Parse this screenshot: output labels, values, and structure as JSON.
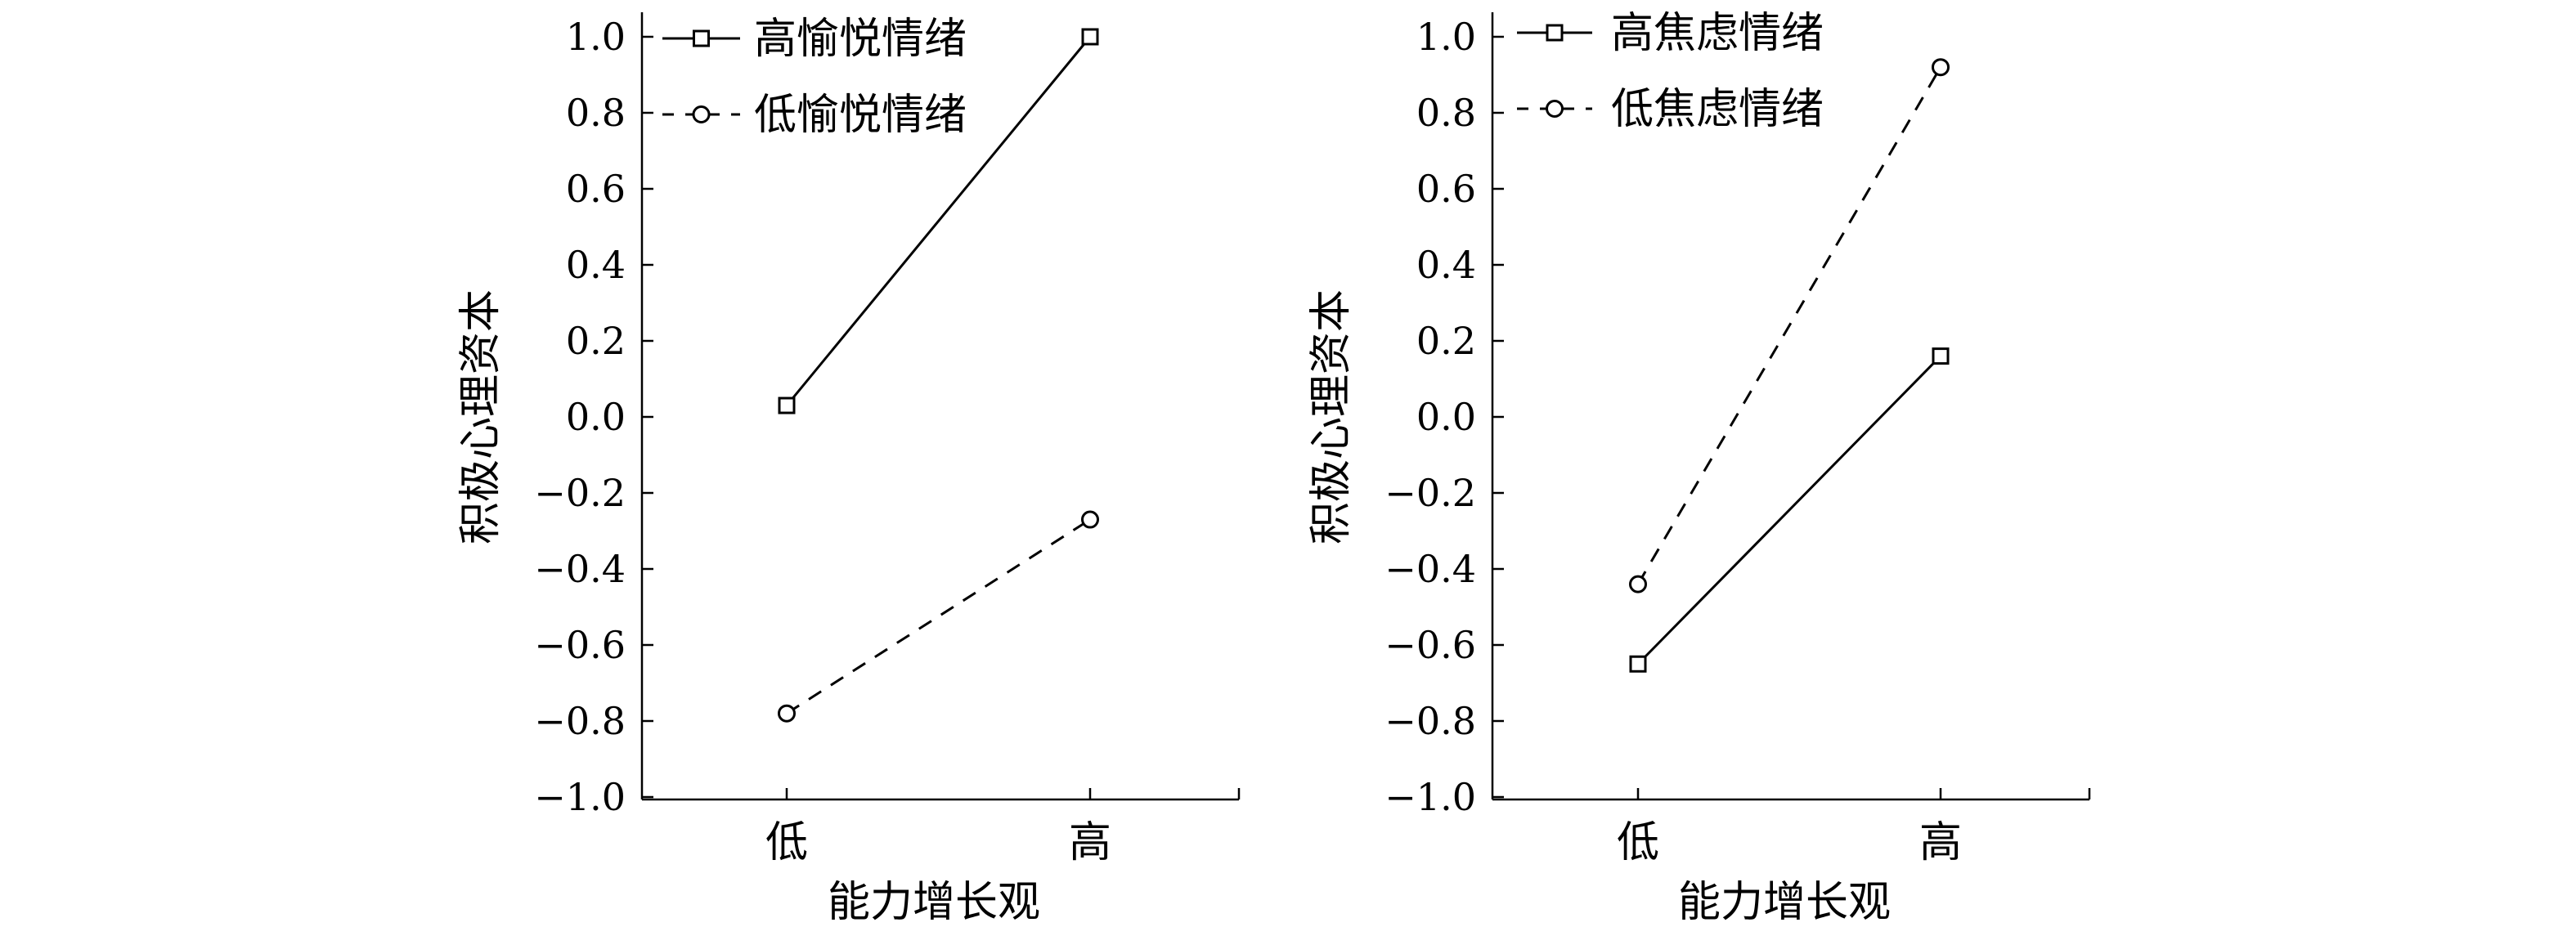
{
  "chart_data": [
    {
      "type": "line",
      "categories": [
        "低",
        "高"
      ],
      "xlabel": "能力增长观",
      "ylabel": "积极心理资本",
      "ylim": [
        -1.0,
        1.0
      ],
      "yticks": [
        "1.0",
        "0.8",
        "0.6",
        "0.4",
        "0.2",
        "0.0",
        "−0.2",
        "−0.4",
        "−0.6",
        "−0.8",
        "−1.0"
      ],
      "legend_position": "top-left",
      "grid": false,
      "series": [
        {
          "name": "高愉悦情绪",
          "values": [
            0.03,
            1.0
          ],
          "line_style": "solid",
          "marker": "square"
        },
        {
          "name": "低愉悦情绪",
          "values": [
            -0.78,
            -0.27
          ],
          "line_style": "dashed",
          "marker": "circle"
        }
      ]
    },
    {
      "type": "line",
      "categories": [
        "低",
        "高"
      ],
      "xlabel": "能力增长观",
      "ylabel": "积极心理资本",
      "ylim": [
        -1.0,
        1.0
      ],
      "yticks": [
        "1.0",
        "0.8",
        "0.6",
        "0.4",
        "0.2",
        "0.0",
        "−0.2",
        "−0.4",
        "−0.6",
        "−0.8",
        "−1.0"
      ],
      "legend_position": "top-left",
      "grid": false,
      "series": [
        {
          "name": "高焦虑情绪",
          "values": [
            -0.65,
            0.16
          ],
          "line_style": "solid",
          "marker": "square"
        },
        {
          "name": "低焦虑情绪",
          "values": [
            -0.44,
            0.92
          ],
          "line_style": "dashed",
          "marker": "circle"
        }
      ]
    }
  ]
}
